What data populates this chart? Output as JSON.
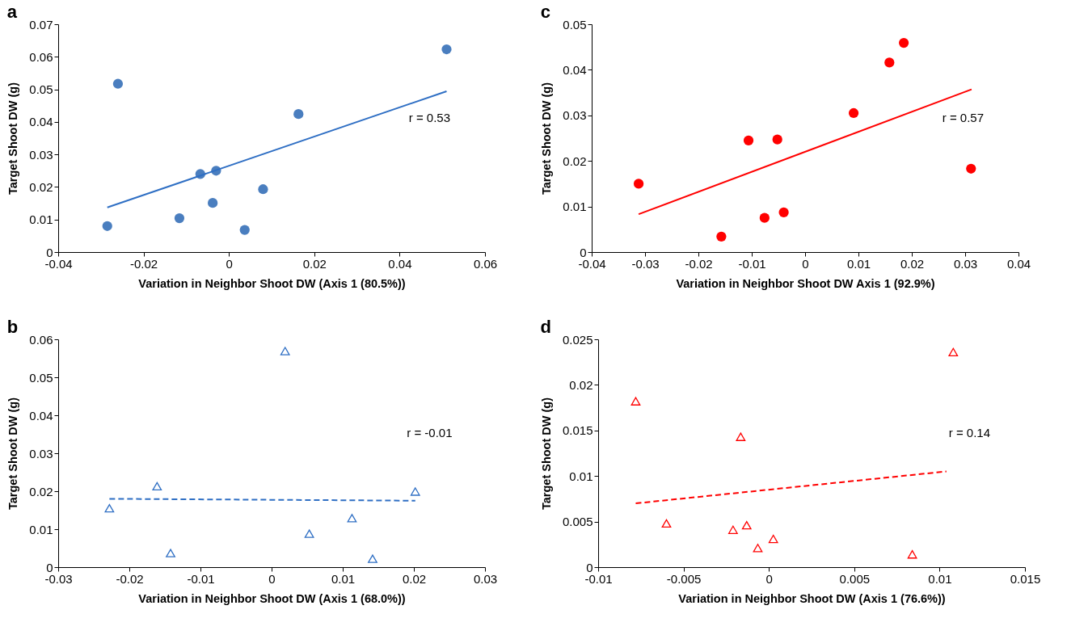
{
  "chart_data": [
    {
      "type": "scatter",
      "title": "a",
      "xlabel": "Variation in Neighbor Shoot DW (Axis 1 (80.5%))",
      "ylabel": "Target Shoot DW (g)",
      "xlim": [
        -0.04,
        0.06
      ],
      "xticks": [
        -0.04,
        -0.02,
        0,
        0.02,
        0.04,
        0.06
      ],
      "ylim": [
        0,
        0.07
      ],
      "yticks": [
        0,
        0.01,
        0.02,
        0.03,
        0.04,
        0.05,
        0.06,
        0.07
      ],
      "annotations": [
        "r = 0.53"
      ],
      "series": [
        {
          "type": "scatter",
          "marker": "circle",
          "color": "#4a7ebf",
          "x": [
            -0.0285,
            -0.026,
            -0.0116,
            -0.0067,
            -0.003,
            -0.0038,
            0.0037,
            0.008,
            0.0163,
            0.051
          ],
          "values": [
            0.008,
            0.0517,
            0.0104,
            0.024,
            0.025,
            0.0151,
            0.0068,
            0.0193,
            0.0424,
            0.0623
          ]
        },
        {
          "type": "line",
          "line_style": "solid",
          "color": "#2f6fc4",
          "x": [
            -0.0285,
            0.051
          ],
          "values": [
            0.0137,
            0.0494
          ]
        }
      ]
    },
    {
      "type": "scatter",
      "title": "c",
      "xlabel": "Variation in Neighbor Shoot DW Axis 1 (92.9%)",
      "ylabel": "Target Shoot DW (g)",
      "xlim": [
        -0.04,
        0.04
      ],
      "xticks": [
        -0.04,
        -0.03,
        -0.02,
        -0.01,
        0,
        0.01,
        0.02,
        0.03,
        0.04
      ],
      "ylim": [
        0,
        0.05
      ],
      "yticks": [
        0,
        0.01,
        0.02,
        0.03,
        0.04,
        0.05
      ],
      "annotations": [
        "r = 0.57"
      ],
      "series": [
        {
          "type": "scatter",
          "marker": "circle",
          "color": "#ff0000",
          "x": [
            -0.0312,
            -0.0157,
            -0.0106,
            -0.0076,
            -0.0052,
            -0.004,
            0.0091,
            0.0158,
            0.0185,
            0.0311
          ],
          "values": [
            0.015,
            0.0034,
            0.0245,
            0.0075,
            0.0247,
            0.0087,
            0.0305,
            0.0416,
            0.0459,
            0.0183
          ]
        },
        {
          "type": "line",
          "line_style": "solid",
          "color": "#ff0000",
          "x": [
            -0.0312,
            0.0312
          ],
          "values": [
            0.0083,
            0.0357
          ]
        }
      ]
    },
    {
      "type": "scatter",
      "title": "b",
      "xlabel": "Variation in Neighbor Shoot DW (Axis 1 (68.0%))",
      "ylabel": "Target Shoot DW (g)",
      "xlim": [
        -0.03,
        0.03
      ],
      "xticks": [
        -0.03,
        -0.02,
        -0.01,
        0,
        0.01,
        0.02,
        0.03
      ],
      "ylim": [
        0,
        0.06
      ],
      "yticks": [
        0,
        0.01,
        0.02,
        0.03,
        0.04,
        0.05,
        0.06
      ],
      "annotations": [
        "r = -0.01"
      ],
      "series": [
        {
          "type": "scatter",
          "marker": "triangle",
          "color": "#2f6fc4",
          "x": [
            -0.0228,
            -0.0161,
            -0.0142,
            0.0019,
            0.0053,
            0.0113,
            0.0142,
            0.0202
          ],
          "values": [
            0.0155,
            0.0213,
            0.0037,
            0.0569,
            0.0088,
            0.0129,
            0.0022,
            0.0199
          ]
        },
        {
          "type": "line",
          "line_style": "dashed",
          "color": "#2f6fc4",
          "x": [
            -0.0228,
            0.0202
          ],
          "values": [
            0.018,
            0.0175
          ]
        }
      ]
    },
    {
      "type": "scatter",
      "title": "d",
      "xlabel": "Variation in Neighbor Shoot DW (Axis 1 (76.6%))",
      "ylabel": "Target Shoot DW (g)",
      "xlim": [
        -0.01,
        0.015
      ],
      "xticks": [
        -0.01,
        -0.005,
        0,
        0.005,
        0.01,
        0.015
      ],
      "ylim": [
        0,
        0.025
      ],
      "yticks": [
        0,
        0.005,
        0.01,
        0.015,
        0.02,
        0.025
      ],
      "annotations": [
        "r = 0.14"
      ],
      "series": [
        {
          "type": "scatter",
          "marker": "triangle",
          "color": "#ff0000",
          "x": [
            -0.0078,
            -0.006,
            -0.0021,
            -0.00165,
            -0.0013,
            -0.00065,
            0.00026,
            0.0084,
            0.0108
          ],
          "values": [
            0.0182,
            0.0048,
            0.0041,
            0.0143,
            0.0046,
            0.0021,
            0.0031,
            0.0014,
            0.0236
          ]
        },
        {
          "type": "line",
          "line_style": "dashed",
          "color": "#ff0000",
          "x": [
            -0.0078,
            0.0104
          ],
          "values": [
            0.007,
            0.0105
          ]
        }
      ]
    }
  ]
}
